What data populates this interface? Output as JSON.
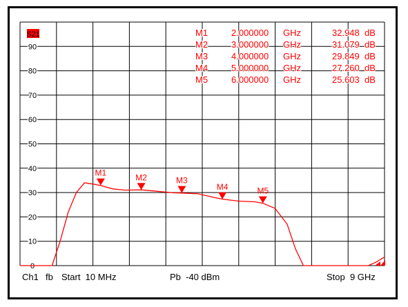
{
  "colors": {
    "trace": "#ff0000",
    "grid": "#000000",
    "background": "#ffffff",
    "text": "#000000"
  },
  "trace_badge": "S21",
  "footer": {
    "channel": "Ch1",
    "format": "fb",
    "start": "Start  10 MHz",
    "power": "Pb  -40 dBm",
    "stop": "Stop  9 GHz"
  },
  "chart_data": {
    "type": "line",
    "title": "",
    "xlabel": "",
    "ylabel": "",
    "x_unit": "GHz",
    "y_unit": "dB",
    "xlim": [
      0.01,
      9
    ],
    "ylim": [
      0,
      100
    ],
    "y_ticks": [
      0,
      10,
      20,
      30,
      40,
      50,
      60,
      70,
      80,
      90
    ],
    "y_tick_labels": [
      "0",
      "10",
      "20",
      "30",
      "40",
      "50",
      "60",
      "70",
      "80",
      "90"
    ],
    "grid": true,
    "series": [
      {
        "x": [
          0.01,
          0.8,
          1.0,
          1.2,
          1.4,
          1.6,
          1.8,
          2.0,
          2.3,
          2.6,
          3.0,
          3.4,
          3.8,
          4.0,
          4.4,
          4.8,
          5.0,
          5.4,
          5.8,
          6.0,
          6.3,
          6.6,
          6.8,
          7.0,
          7.2,
          7.5,
          7.8,
          8.0,
          8.3,
          8.6,
          8.8,
          9.0
        ],
        "y": [
          0,
          0,
          10,
          22,
          30,
          34,
          33.5,
          32.9,
          31.5,
          31.0,
          31.1,
          30.5,
          29.9,
          29.8,
          29.5,
          28.0,
          27.3,
          26.5,
          26.2,
          25.6,
          23.5,
          17,
          7,
          0,
          0,
          0,
          0,
          0,
          0,
          0,
          1.5,
          3.5
        ]
      }
    ],
    "markers": [
      {
        "label": "M1",
        "freq": "2.000000",
        "freq_unit": "GHz",
        "value": "32.948",
        "unit": "dB",
        "x": 2.0,
        "y": 32.948
      },
      {
        "label": "M2",
        "freq": "3.000000",
        "freq_unit": "GHz",
        "value": "31.079",
        "unit": "dB",
        "x": 3.0,
        "y": 31.079
      },
      {
        "label": "M3",
        "freq": "4.000000",
        "freq_unit": "GHz",
        "value": "29.849",
        "unit": "dB",
        "x": 4.0,
        "y": 29.849
      },
      {
        "label": "M4",
        "freq": "5.000000",
        "freq_unit": "GHz",
        "value": "27.260",
        "unit": "dB",
        "x": 5.0,
        "y": 27.26
      },
      {
        "label": "M5",
        "freq": "6.000000",
        "freq_unit": "GHz",
        "value": "25.603",
        "unit": "dB",
        "x": 6.0,
        "y": 25.603
      }
    ]
  }
}
